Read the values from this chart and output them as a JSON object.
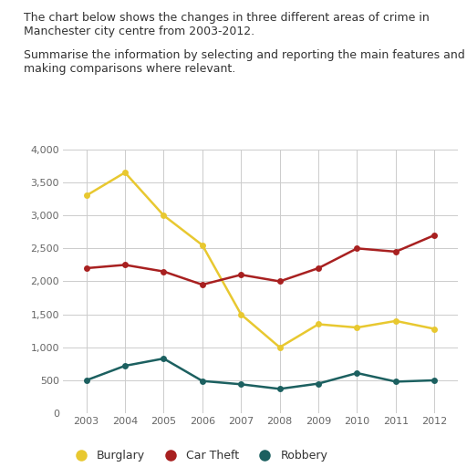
{
  "years": [
    2003,
    2004,
    2005,
    2006,
    2007,
    2008,
    2009,
    2010,
    2011,
    2012
  ],
  "burglary": [
    3300,
    3650,
    3000,
    2550,
    1500,
    1000,
    1350,
    1300,
    1400,
    1280
  ],
  "car_theft": [
    2200,
    2250,
    2150,
    1950,
    2100,
    2000,
    2200,
    2500,
    2450,
    2700
  ],
  "robbery": [
    500,
    720,
    830,
    490,
    440,
    370,
    450,
    610,
    480,
    500
  ],
  "burglary_color": "#E8C830",
  "car_theft_color": "#A82020",
  "robbery_color": "#1C6060",
  "title_line1": "The chart below shows the changes in three different areas of crime in",
  "title_line2": "Manchester city centre from 2003-2012.",
  "subtitle_line1": "Summarise the information by selecting and reporting the main features and",
  "subtitle_line2": "making comparisons where relevant.",
  "ylim": [
    0,
    4000
  ],
  "yticks": [
    0,
    500,
    1000,
    1500,
    2000,
    2500,
    3000,
    3500,
    4000
  ],
  "ytick_labels": [
    "0",
    "500",
    "1,000",
    "1,500",
    "2,000",
    "2,500",
    "3,000",
    "3,500",
    "4,000"
  ],
  "legend_labels": [
    "Burglary",
    "Car Theft",
    "Robbery"
  ],
  "background_color": "#ffffff",
  "grid_color": "#cccccc",
  "text_color": "#333333",
  "tick_color": "#666666",
  "marker": "o",
  "marker_size": 5,
  "line_width": 1.8,
  "font_size_text": 9.0,
  "font_size_ticks": 8.0,
  "font_size_legend": 9.0
}
